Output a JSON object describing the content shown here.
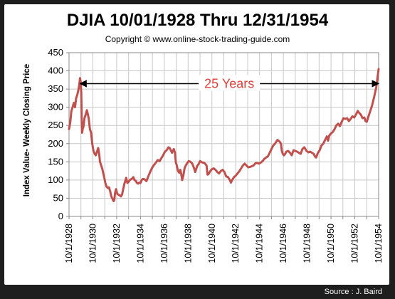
{
  "chart_data": {
    "type": "line",
    "title": "DJIA 10/01/1928 Thru 12/31/1954",
    "subtitle": "Copyright © www.online-stock-trading-guide.com",
    "ylabel": "Index Value- Weekly Closing Price",
    "xlabel": "",
    "ylim": [
      0,
      450
    ],
    "yticks": [
      0,
      50,
      100,
      150,
      200,
      250,
      300,
      350,
      400,
      450
    ],
    "xlim": [
      1928.75,
      1954.75
    ],
    "xtick_labels": [
      "10/1/1928",
      "10/1/1930",
      "10/1/1932",
      "10/1/1934",
      "10/1/1936",
      "10/1/1938",
      "10/1/1940",
      "10/1/1942",
      "10/1/1944",
      "10/1/1946",
      "10/1/1948",
      "10/1/1950",
      "10/1/1952",
      "10/1/1954"
    ],
    "grid": true,
    "line_color": "#c0504d",
    "annotation": {
      "text": "25 Years",
      "from_x": 1929.67,
      "to_x": 1954.75,
      "y": 365
    },
    "series": [
      {
        "points": [
          [
            1928.75,
            240
          ],
          [
            1928.85,
            258
          ],
          [
            1928.95,
            290
          ],
          [
            1929.05,
            300
          ],
          [
            1929.15,
            312
          ],
          [
            1929.25,
            300
          ],
          [
            1929.35,
            325
          ],
          [
            1929.45,
            335
          ],
          [
            1929.55,
            350
          ],
          [
            1929.62,
            365
          ],
          [
            1929.67,
            380
          ],
          [
            1929.72,
            372
          ],
          [
            1929.78,
            340
          ],
          [
            1929.82,
            260
          ],
          [
            1929.85,
            230
          ],
          [
            1929.9,
            240
          ],
          [
            1929.97,
            248
          ],
          [
            1930.05,
            270
          ],
          [
            1930.15,
            280
          ],
          [
            1930.25,
            292
          ],
          [
            1930.3,
            285
          ],
          [
            1930.4,
            270
          ],
          [
            1930.5,
            240
          ],
          [
            1930.6,
            230
          ],
          [
            1930.7,
            200
          ],
          [
            1930.8,
            180
          ],
          [
            1930.9,
            172
          ],
          [
            1931.0,
            168
          ],
          [
            1931.1,
            178
          ],
          [
            1931.2,
            188
          ],
          [
            1931.28,
            172
          ],
          [
            1931.35,
            150
          ],
          [
            1931.45,
            140
          ],
          [
            1931.55,
            130
          ],
          [
            1931.65,
            115
          ],
          [
            1931.72,
            105
          ],
          [
            1931.8,
            92
          ],
          [
            1931.9,
            82
          ],
          [
            1932.0,
            78
          ],
          [
            1932.1,
            80
          ],
          [
            1932.2,
            70
          ],
          [
            1932.3,
            55
          ],
          [
            1932.4,
            48
          ],
          [
            1932.5,
            42
          ],
          [
            1932.55,
            45
          ],
          [
            1932.62,
            65
          ],
          [
            1932.7,
            75
          ],
          [
            1932.8,
            62
          ],
          [
            1932.9,
            60
          ],
          [
            1933.0,
            58
          ],
          [
            1933.1,
            55
          ],
          [
            1933.2,
            60
          ],
          [
            1933.3,
            75
          ],
          [
            1933.4,
            90
          ],
          [
            1933.5,
            100
          ],
          [
            1933.55,
            106
          ],
          [
            1933.65,
            92
          ],
          [
            1933.75,
            95
          ],
          [
            1933.85,
            100
          ],
          [
            1933.95,
            102
          ],
          [
            1934.05,
            104
          ],
          [
            1934.15,
            108
          ],
          [
            1934.25,
            100
          ],
          [
            1934.35,
            98
          ],
          [
            1934.45,
            92
          ],
          [
            1934.55,
            90
          ],
          [
            1934.65,
            93
          ],
          [
            1934.75,
            92
          ],
          [
            1934.85,
            100
          ],
          [
            1934.95,
            103
          ],
          [
            1935.1,
            102
          ],
          [
            1935.25,
            97
          ],
          [
            1935.4,
            110
          ],
          [
            1935.6,
            125
          ],
          [
            1935.75,
            135
          ],
          [
            1935.9,
            142
          ],
          [
            1936.05,
            148
          ],
          [
            1936.2,
            155
          ],
          [
            1936.35,
            152
          ],
          [
            1936.5,
            160
          ],
          [
            1936.65,
            168
          ],
          [
            1936.8,
            178
          ],
          [
            1936.95,
            182
          ],
          [
            1937.1,
            190
          ],
          [
            1937.2,
            188
          ],
          [
            1937.3,
            182
          ],
          [
            1937.4,
            175
          ],
          [
            1937.55,
            185
          ],
          [
            1937.65,
            175
          ],
          [
            1937.72,
            148
          ],
          [
            1937.8,
            140
          ],
          [
            1937.9,
            125
          ],
          [
            1938.0,
            120
          ],
          [
            1938.1,
            128
          ],
          [
            1938.2,
            112
          ],
          [
            1938.25,
            100
          ],
          [
            1938.35,
            112
          ],
          [
            1938.45,
            132
          ],
          [
            1938.55,
            140
          ],
          [
            1938.65,
            145
          ],
          [
            1938.8,
            152
          ],
          [
            1938.95,
            150
          ],
          [
            1939.1,
            145
          ],
          [
            1939.25,
            132
          ],
          [
            1939.35,
            122
          ],
          [
            1939.5,
            138
          ],
          [
            1939.65,
            145
          ],
          [
            1939.75,
            152
          ],
          [
            1939.85,
            150
          ],
          [
            1939.95,
            148
          ],
          [
            1940.05,
            148
          ],
          [
            1940.15,
            146
          ],
          [
            1940.3,
            140
          ],
          [
            1940.38,
            115
          ],
          [
            1940.45,
            116
          ],
          [
            1940.6,
            124
          ],
          [
            1940.75,
            130
          ],
          [
            1940.9,
            132
          ],
          [
            1941.05,
            128
          ],
          [
            1941.2,
            122
          ],
          [
            1941.35,
            118
          ],
          [
            1941.5,
            125
          ],
          [
            1941.65,
            128
          ],
          [
            1941.8,
            122
          ],
          [
            1941.95,
            110
          ],
          [
            1942.1,
            108
          ],
          [
            1942.25,
            100
          ],
          [
            1942.35,
            93
          ],
          [
            1942.45,
            100
          ],
          [
            1942.6,
            108
          ],
          [
            1942.75,
            112
          ],
          [
            1942.9,
            118
          ],
          [
            1943.05,
            124
          ],
          [
            1943.2,
            132
          ],
          [
            1943.35,
            140
          ],
          [
            1943.5,
            145
          ],
          [
            1943.65,
            140
          ],
          [
            1943.8,
            135
          ],
          [
            1943.95,
            136
          ],
          [
            1944.1,
            138
          ],
          [
            1944.25,
            140
          ],
          [
            1944.4,
            146
          ],
          [
            1944.55,
            147
          ],
          [
            1944.7,
            145
          ],
          [
            1944.85,
            148
          ],
          [
            1945.0,
            152
          ],
          [
            1945.15,
            158
          ],
          [
            1945.3,
            162
          ],
          [
            1945.45,
            165
          ],
          [
            1945.6,
            175
          ],
          [
            1945.75,
            185
          ],
          [
            1945.9,
            195
          ],
          [
            1946.05,
            200
          ],
          [
            1946.15,
            205
          ],
          [
            1946.25,
            210
          ],
          [
            1946.35,
            208
          ],
          [
            1946.45,
            205
          ],
          [
            1946.55,
            200
          ],
          [
            1946.62,
            180
          ],
          [
            1946.7,
            172
          ],
          [
            1946.8,
            168
          ],
          [
            1946.9,
            172
          ],
          [
            1947.0,
            178
          ],
          [
            1947.15,
            180
          ],
          [
            1947.3,
            175
          ],
          [
            1947.45,
            168
          ],
          [
            1947.6,
            182
          ],
          [
            1947.75,
            180
          ],
          [
            1947.9,
            178
          ],
          [
            1948.05,
            175
          ],
          [
            1948.2,
            172
          ],
          [
            1948.35,
            185
          ],
          [
            1948.5,
            190
          ],
          [
            1948.6,
            185
          ],
          [
            1948.7,
            180
          ],
          [
            1948.85,
            176
          ],
          [
            1949.0,
            178
          ],
          [
            1949.15,
            175
          ],
          [
            1949.3,
            172
          ],
          [
            1949.4,
            165
          ],
          [
            1949.5,
            162
          ],
          [
            1949.65,
            175
          ],
          [
            1949.8,
            182
          ],
          [
            1949.95,
            195
          ],
          [
            1950.1,
            200
          ],
          [
            1950.25,
            210
          ],
          [
            1950.4,
            220
          ],
          [
            1950.5,
            208
          ],
          [
            1950.6,
            222
          ],
          [
            1950.75,
            228
          ],
          [
            1950.9,
            232
          ],
          [
            1951.05,
            240
          ],
          [
            1951.2,
            250
          ],
          [
            1951.35,
            255
          ],
          [
            1951.5,
            248
          ],
          [
            1951.65,
            260
          ],
          [
            1951.8,
            270
          ],
          [
            1951.95,
            268
          ],
          [
            1952.1,
            270
          ],
          [
            1952.25,
            262
          ],
          [
            1952.4,
            268
          ],
          [
            1952.55,
            275
          ],
          [
            1952.7,
            272
          ],
          [
            1952.85,
            280
          ],
          [
            1953.0,
            290
          ],
          [
            1953.1,
            285
          ],
          [
            1953.25,
            280
          ],
          [
            1953.4,
            270
          ],
          [
            1953.55,
            272
          ],
          [
            1953.65,
            262
          ],
          [
            1953.75,
            260
          ],
          [
            1953.9,
            275
          ],
          [
            1954.05,
            290
          ],
          [
            1954.2,
            305
          ],
          [
            1954.35,
            325
          ],
          [
            1954.45,
            340
          ],
          [
            1954.55,
            355
          ],
          [
            1954.65,
            380
          ],
          [
            1954.75,
            405
          ]
        ]
      }
    ]
  },
  "footer": {
    "source": "Source : J. Baird"
  }
}
